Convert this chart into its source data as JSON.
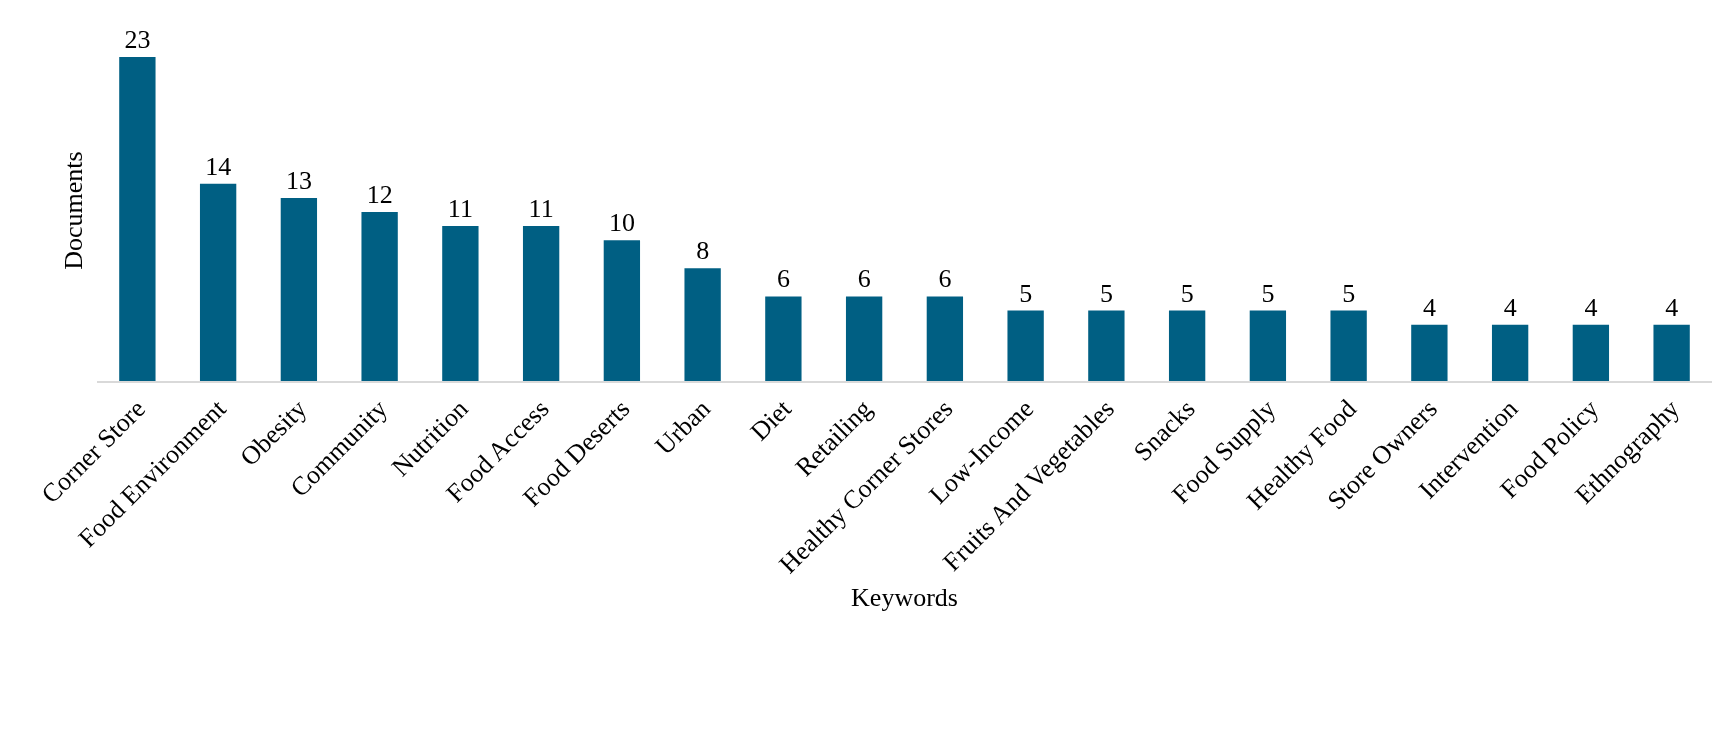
{
  "chart_data": {
    "type": "bar",
    "xlabel": "Keywords",
    "ylabel": "Documents",
    "categories": [
      "Corner Store",
      "Food Environment",
      "Obesity",
      "Community",
      "Nutrition",
      "Food Access",
      "Food Deserts",
      "Urban",
      "Diet",
      "Retailing",
      "Healthy Corner Stores",
      "Low-Income",
      "Fruits And Vegetables",
      "Snacks",
      "Food Supply",
      "Healthy Food",
      "Store Owners",
      "Intervention",
      "Food Policy",
      "Ethnography"
    ],
    "values": [
      23,
      14,
      13,
      12,
      11,
      11,
      10,
      8,
      6,
      6,
      6,
      5,
      5,
      5,
      5,
      5,
      4,
      4,
      4,
      4
    ],
    "color": "#005f83",
    "data_labels": true
  }
}
